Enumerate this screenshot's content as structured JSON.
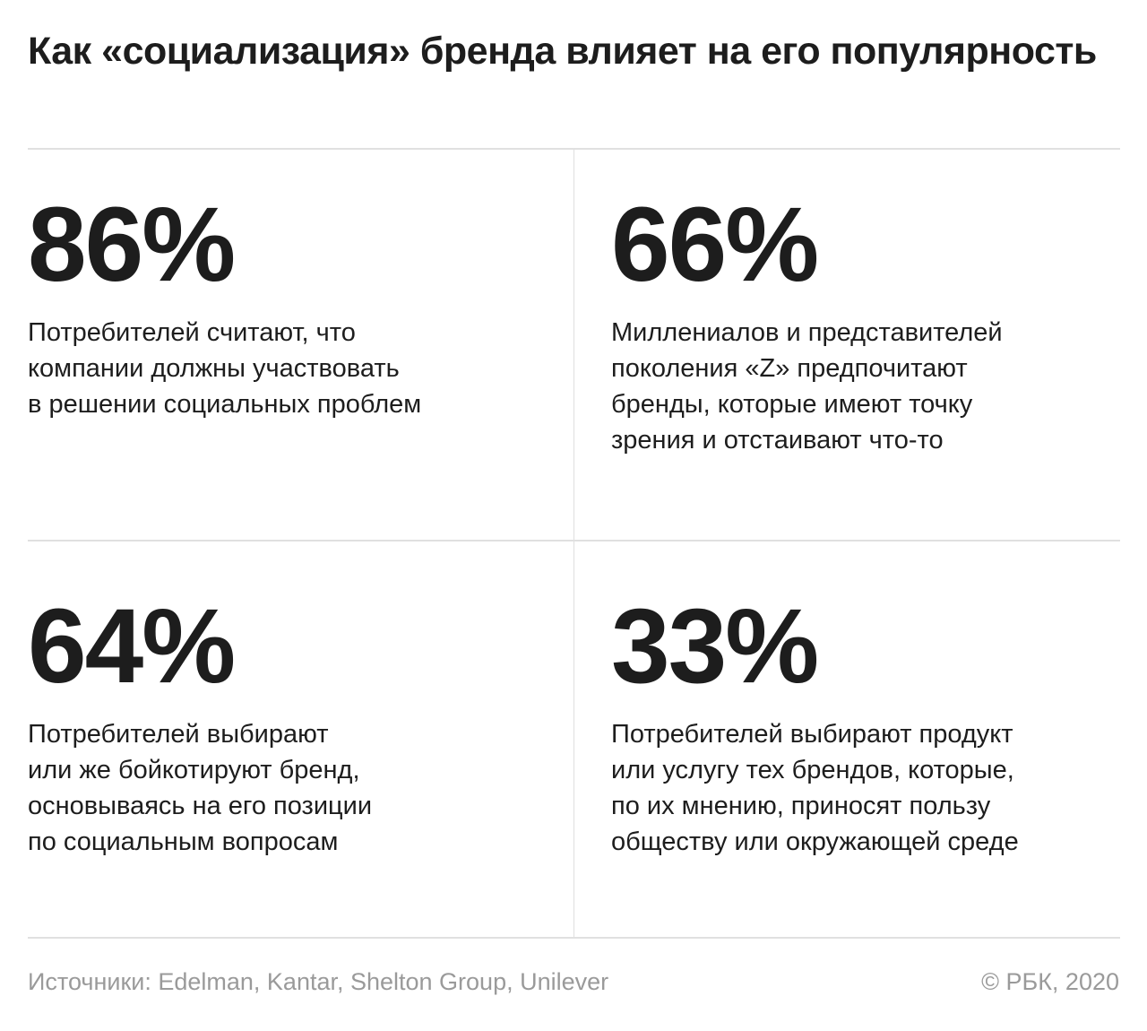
{
  "title": "Как «социализация» бренда влияет на его популярность",
  "stats": [
    {
      "value": "86%",
      "text": [
        "Потребителей считают, что",
        "компании должны участвовать",
        "в решении социальных проблем"
      ]
    },
    {
      "value": "66%",
      "text": [
        "Миллениалов и представителей",
        "поколения «Z» предпочитают",
        "бренды, которые имеют точку",
        "зрения и отстаивают что-то"
      ]
    },
    {
      "value": "64%",
      "text": [
        "Потребителей выбирают",
        "или же бойкотируют бренд,",
        "основываясь на его позиции",
        "по социальным вопросам"
      ]
    },
    {
      "value": "33%",
      "text": [
        "Потребителей выбирают продукт",
        "или услугу тех брендов, которые,",
        "по их мнению, приносят пользу",
        "обществу или окружающей среде"
      ]
    }
  ],
  "footer": {
    "sources": "Источники: Edelman, Kantar, Shelton Group, Unilever",
    "copyright": "© РБК, 2020"
  }
}
